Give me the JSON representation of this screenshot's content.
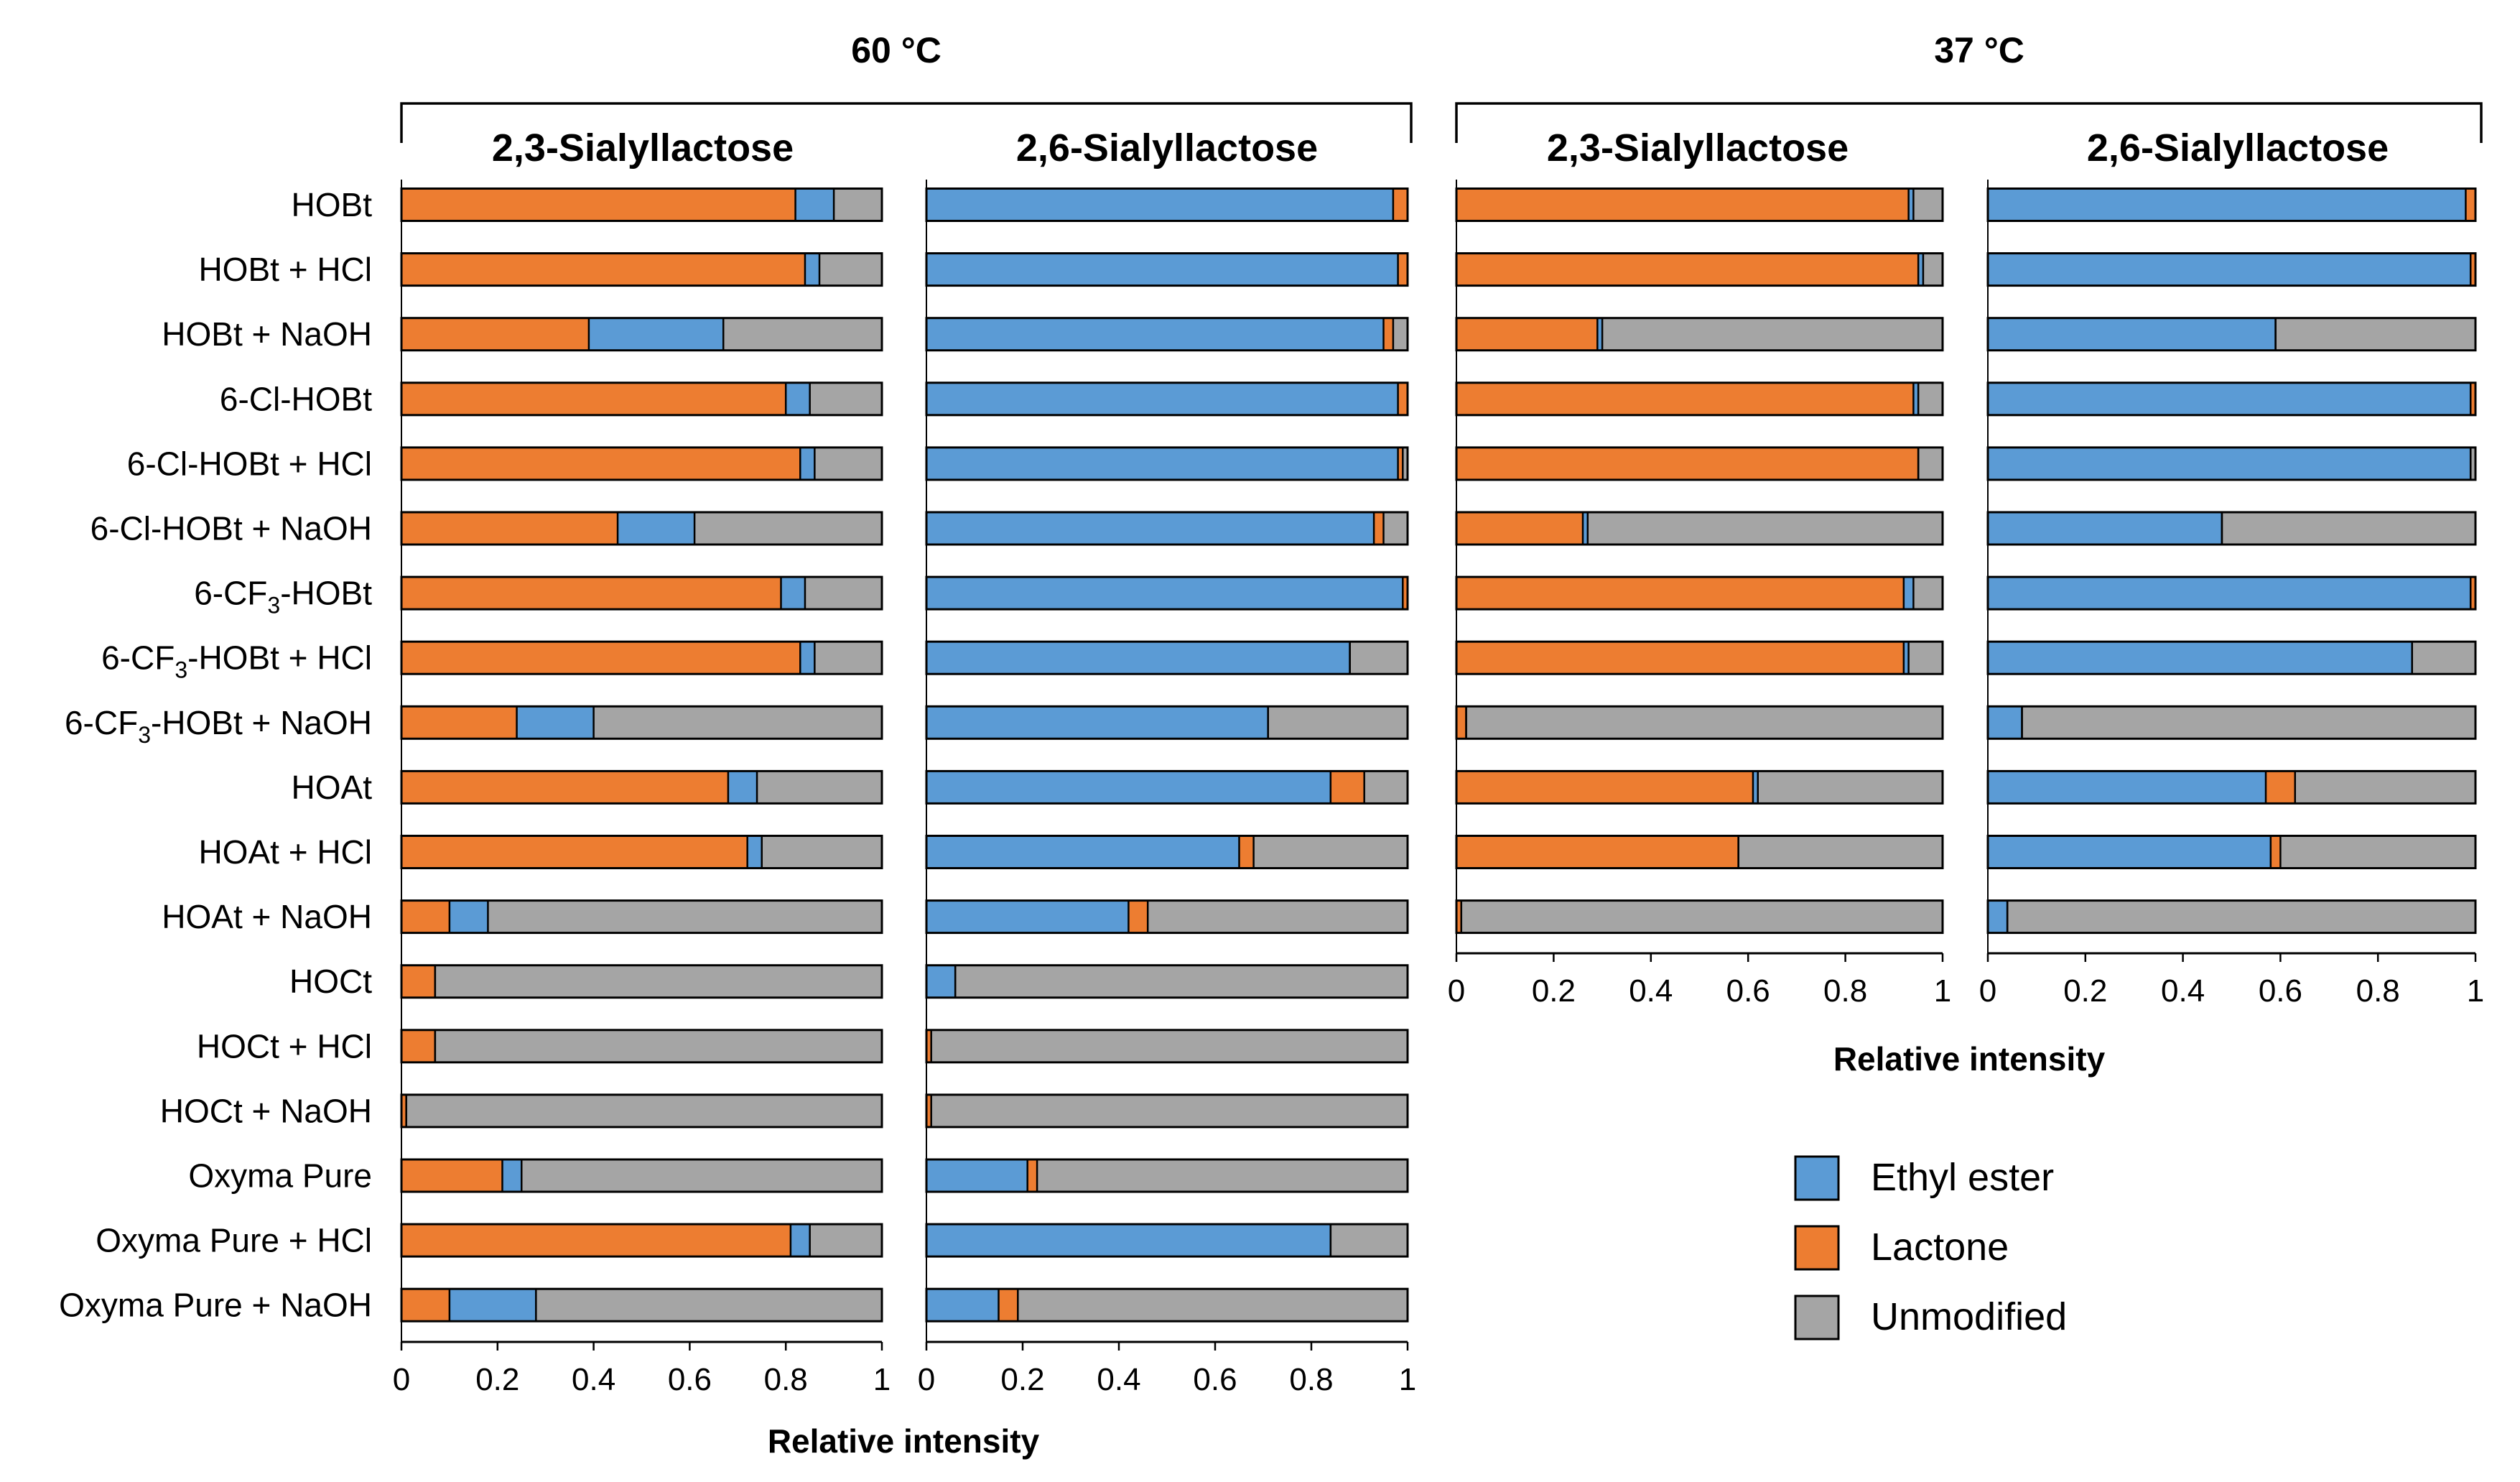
{
  "headers": {
    "temp_60": "60 °C",
    "temp_37": "37 °C"
  },
  "axis": {
    "xlabel": "Relative intensity",
    "ticks": [
      "0",
      "0.2",
      "0.4",
      "0.6",
      "0.8",
      "1"
    ]
  },
  "legend": [
    {
      "name": "Ethyl ester",
      "color": "#5B9BD5"
    },
    {
      "name": "Lactone",
      "color": "#ED7D31"
    },
    {
      "name": "Unmodified",
      "color": "#A5A5A5"
    }
  ],
  "rows": [
    {
      "pre": "HOBt",
      "sub": "",
      "post": ""
    },
    {
      "pre": "HOBt + HCl",
      "sub": "",
      "post": ""
    },
    {
      "pre": "HOBt + NaOH",
      "sub": "",
      "post": ""
    },
    {
      "pre": "6-Cl-HOBt",
      "sub": "",
      "post": ""
    },
    {
      "pre": "6-Cl-HOBt + HCl",
      "sub": "",
      "post": ""
    },
    {
      "pre": "6-Cl-HOBt + NaOH",
      "sub": "",
      "post": ""
    },
    {
      "pre": "6-CF",
      "sub": "3",
      "post": "-HOBt"
    },
    {
      "pre": "6-CF",
      "sub": "3",
      "post": "-HOBt + HCl"
    },
    {
      "pre": "6-CF",
      "sub": "3",
      "post": "-HOBt + NaOH"
    },
    {
      "pre": "HOAt",
      "sub": "",
      "post": ""
    },
    {
      "pre": "HOAt + HCl",
      "sub": "",
      "post": ""
    },
    {
      "pre": "HOAt + NaOH",
      "sub": "",
      "post": ""
    },
    {
      "pre": "HOCt",
      "sub": "",
      "post": ""
    },
    {
      "pre": "HOCt + HCl",
      "sub": "",
      "post": ""
    },
    {
      "pre": "HOCt + NaOH",
      "sub": "",
      "post": ""
    },
    {
      "pre": "Oxyma Pure",
      "sub": "",
      "post": ""
    },
    {
      "pre": "Oxyma Pure + HCl",
      "sub": "",
      "post": ""
    },
    {
      "pre": "Oxyma Pure + NaOH",
      "sub": "",
      "post": ""
    }
  ],
  "chart_data": [
    {
      "type": "bar",
      "stacked": true,
      "orientation": "horizontal",
      "group": "60 °C",
      "title": "2,3-Sialyllactose",
      "xlabel": "Relative intensity",
      "xlim": [
        0,
        1
      ],
      "categories": [
        "HOBt",
        "HOBt + HCl",
        "HOBt + NaOH",
        "6-Cl-HOBt",
        "6-Cl-HOBt + HCl",
        "6-Cl-HOBt + NaOH",
        "6-CF3-HOBt",
        "6-CF3-HOBt + HCl",
        "6-CF3-HOBt + NaOH",
        "HOAt",
        "HOAt + HCl",
        "HOAt + NaOH",
        "HOCt",
        "HOCt + HCl",
        "HOCt + NaOH",
        "Oxyma Pure",
        "Oxyma Pure + HCl",
        "Oxyma Pure + NaOH"
      ],
      "stack_order": [
        "Lactone",
        "Ethyl ester",
        "Unmodified"
      ],
      "series": [
        {
          "name": "Lactone",
          "values": [
            0.82,
            0.84,
            0.39,
            0.8,
            0.83,
            0.45,
            0.79,
            0.83,
            0.24,
            0.68,
            0.72,
            0.1,
            0.07,
            0.07,
            0.01,
            0.21,
            0.81,
            0.1
          ]
        },
        {
          "name": "Ethyl ester",
          "values": [
            0.08,
            0.03,
            0.28,
            0.05,
            0.03,
            0.16,
            0.05,
            0.03,
            0.16,
            0.06,
            0.03,
            0.08,
            0.0,
            0.0,
            0.0,
            0.04,
            0.04,
            0.18
          ]
        },
        {
          "name": "Unmodified",
          "values": [
            0.1,
            0.13,
            0.33,
            0.15,
            0.14,
            0.39,
            0.16,
            0.14,
            0.6,
            0.26,
            0.25,
            0.82,
            0.93,
            0.93,
            0.99,
            0.75,
            0.15,
            0.72
          ]
        }
      ]
    },
    {
      "type": "bar",
      "stacked": true,
      "orientation": "horizontal",
      "group": "60 °C",
      "title": "2,6-Sialyllactose",
      "xlabel": "Relative intensity",
      "xlim": [
        0,
        1
      ],
      "categories": [
        "HOBt",
        "HOBt + HCl",
        "HOBt + NaOH",
        "6-Cl-HOBt",
        "6-Cl-HOBt + HCl",
        "6-Cl-HOBt + NaOH",
        "6-CF3-HOBt",
        "6-CF3-HOBt + HCl",
        "6-CF3-HOBt + NaOH",
        "HOAt",
        "HOAt + HCl",
        "HOAt + NaOH",
        "HOCt",
        "HOCt + HCl",
        "HOCt + NaOH",
        "Oxyma Pure",
        "Oxyma Pure + HCl",
        "Oxyma Pure + NaOH"
      ],
      "stack_order": [
        "Ethyl ester",
        "Lactone",
        "Unmodified"
      ],
      "series": [
        {
          "name": "Ethyl ester",
          "values": [
            0.97,
            0.98,
            0.95,
            0.98,
            0.98,
            0.93,
            0.99,
            0.88,
            0.71,
            0.84,
            0.65,
            0.42,
            0.06,
            0.0,
            0.0,
            0.21,
            0.84,
            0.15
          ]
        },
        {
          "name": "Lactone",
          "values": [
            0.03,
            0.02,
            0.02,
            0.02,
            0.01,
            0.02,
            0.01,
            0.0,
            0.0,
            0.07,
            0.03,
            0.04,
            0.0,
            0.01,
            0.01,
            0.02,
            0.0,
            0.04
          ]
        },
        {
          "name": "Unmodified",
          "values": [
            0.0,
            0.0,
            0.03,
            0.0,
            0.01,
            0.05,
            0.0,
            0.12,
            0.29,
            0.09,
            0.32,
            0.54,
            0.94,
            0.99,
            0.99,
            0.77,
            0.16,
            0.81
          ]
        }
      ]
    },
    {
      "type": "bar",
      "stacked": true,
      "orientation": "horizontal",
      "group": "37 °C",
      "title": "2,3-Sialyllactose",
      "xlabel": "Relative intensity",
      "xlim": [
        0,
        1
      ],
      "categories": [
        "HOBt",
        "HOBt + HCl",
        "HOBt + NaOH",
        "6-Cl-HOBt",
        "6-Cl-HOBt + HCl",
        "6-Cl-HOBt + NaOH",
        "6-CF3-HOBt",
        "6-CF3-HOBt + HCl",
        "6-CF3-HOBt + NaOH",
        "HOAt",
        "HOAt + HCl",
        "HOAt + NaOH"
      ],
      "stack_order": [
        "Lactone",
        "Ethyl ester",
        "Unmodified"
      ],
      "series": [
        {
          "name": "Lactone",
          "values": [
            0.93,
            0.95,
            0.29,
            0.94,
            0.95,
            0.26,
            0.92,
            0.92,
            0.02,
            0.61,
            0.58,
            0.01
          ]
        },
        {
          "name": "Ethyl ester",
          "values": [
            0.01,
            0.01,
            0.01,
            0.01,
            0.0,
            0.01,
            0.02,
            0.01,
            0.0,
            0.01,
            0.0,
            0.0
          ]
        },
        {
          "name": "Unmodified",
          "values": [
            0.06,
            0.04,
            0.7,
            0.05,
            0.05,
            0.73,
            0.06,
            0.07,
            0.98,
            0.38,
            0.42,
            0.99
          ]
        }
      ]
    },
    {
      "type": "bar",
      "stacked": true,
      "orientation": "horizontal",
      "group": "37 °C",
      "title": "2,6-Sialyllactose",
      "xlabel": "Relative intensity",
      "xlim": [
        0,
        1
      ],
      "categories": [
        "HOBt",
        "HOBt + HCl",
        "HOBt + NaOH",
        "6-Cl-HOBt",
        "6-Cl-HOBt + HCl",
        "6-Cl-HOBt + NaOH",
        "6-CF3-HOBt",
        "6-CF3-HOBt + HCl",
        "6-CF3-HOBt + NaOH",
        "HOAt",
        "HOAt + HCl",
        "HOAt + NaOH"
      ],
      "stack_order": [
        "Ethyl ester",
        "Lactone",
        "Unmodified"
      ],
      "series": [
        {
          "name": "Ethyl ester",
          "values": [
            0.98,
            0.99,
            0.59,
            0.99,
            0.99,
            0.48,
            0.99,
            0.87,
            0.07,
            0.57,
            0.58,
            0.04
          ]
        },
        {
          "name": "Lactone",
          "values": [
            0.02,
            0.01,
            0.0,
            0.01,
            0.0,
            0.0,
            0.01,
            0.0,
            0.0,
            0.06,
            0.02,
            0.0
          ]
        },
        {
          "name": "Unmodified",
          "values": [
            0.0,
            0.0,
            0.41,
            0.0,
            0.01,
            0.52,
            0.0,
            0.13,
            0.93,
            0.37,
            0.4,
            0.96
          ]
        }
      ]
    }
  ]
}
